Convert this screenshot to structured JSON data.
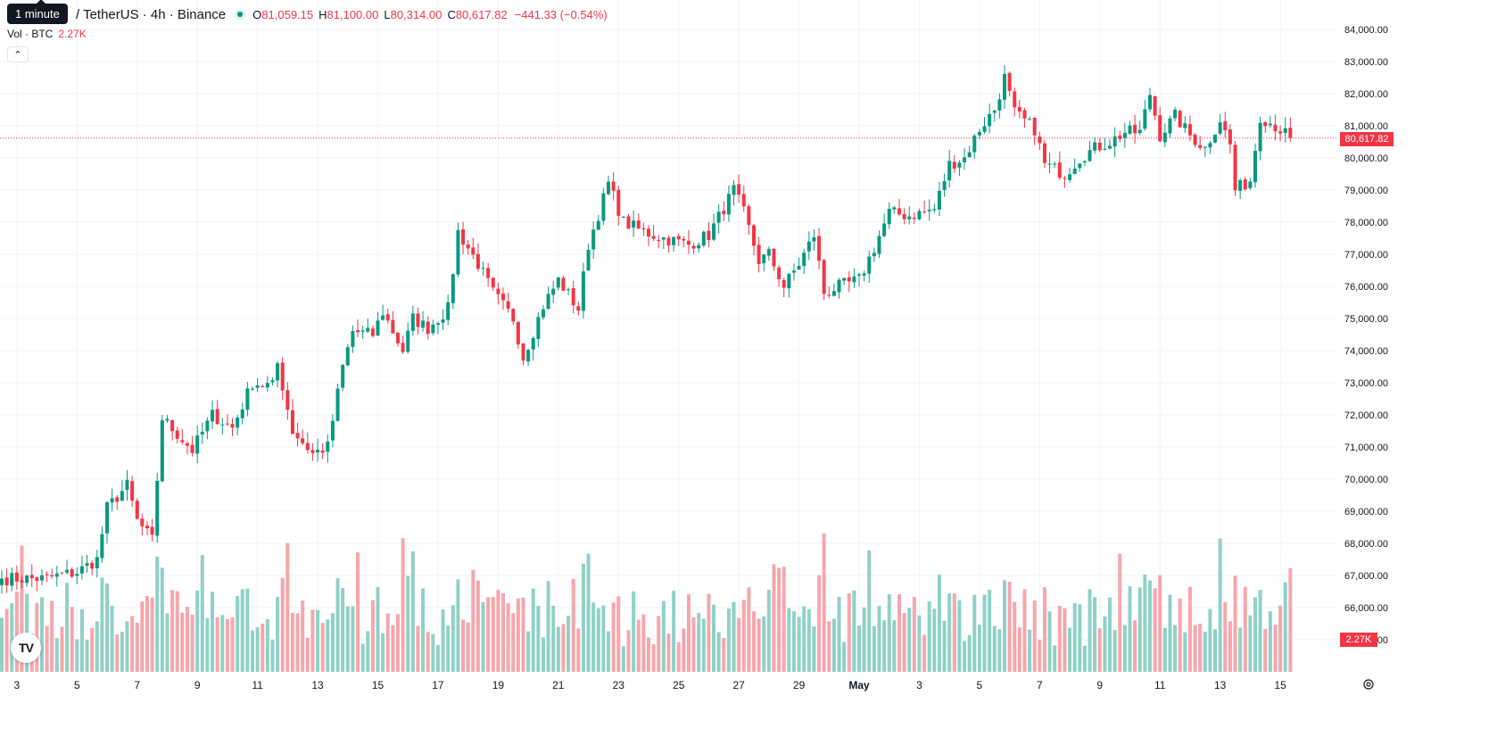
{
  "header": {
    "tooltip": "1 minute",
    "symbol": "/ TetherUS · 4h · Binance",
    "ohlc": [
      {
        "key": "O",
        "value": "81,059.15"
      },
      {
        "key": "H",
        "value": "81,100.00"
      },
      {
        "key": "L",
        "value": "80,314.00"
      },
      {
        "key": "C",
        "value": "80,617.82"
      }
    ],
    "change": "−441.33 (−0.54%)",
    "status_color": "#089981"
  },
  "volume_legend": {
    "label": "Vol · BTC",
    "value": "2.27K"
  },
  "logo_text": "TV",
  "last_price_label": "80,617.82",
  "last_volume_label": "2.27K",
  "colors": {
    "up": "#089981",
    "down": "#f23645",
    "vol_up": "#8fd1c6",
    "vol_down": "#f7a6ab"
  },
  "icons": [
    "chevron-up-icon",
    "tradingview-logo-icon",
    "gear-icon"
  ],
  "chart_data": {
    "type": "candlestick",
    "y_ticks": [
      "84,000.00",
      "83,000.00",
      "82,000.00",
      "81,000.00",
      "80,000.00",
      "79,000.00",
      "78,000.00",
      "77,000.00",
      "76,000.00",
      "75,000.00",
      "74,000.00",
      "73,000.00",
      "72,000.00",
      "71,000.00",
      "70,000.00",
      "69,000.00",
      "68,000.00",
      "67,000.00",
      "66,000.00",
      "65,000.00"
    ],
    "x_ticks": [
      {
        "label": "3",
        "bar": 3
      },
      {
        "label": "5",
        "bar": 15
      },
      {
        "label": "7",
        "bar": 27
      },
      {
        "label": "9",
        "bar": 39
      },
      {
        "label": "11",
        "bar": 51
      },
      {
        "label": "13",
        "bar": 63
      },
      {
        "label": "15",
        "bar": 75
      },
      {
        "label": "17",
        "bar": 87
      },
      {
        "label": "19",
        "bar": 99
      },
      {
        "label": "21",
        "bar": 111
      },
      {
        "label": "23",
        "bar": 123
      },
      {
        "label": "25",
        "bar": 135
      },
      {
        "label": "27",
        "bar": 147
      },
      {
        "label": "29",
        "bar": 159
      },
      {
        "label": "May",
        "bar": 171,
        "bold": true
      },
      {
        "label": "3",
        "bar": 183
      },
      {
        "label": "5",
        "bar": 195
      },
      {
        "label": "7",
        "bar": 207
      },
      {
        "label": "9",
        "bar": 219
      },
      {
        "label": "11",
        "bar": 231
      },
      {
        "label": "13",
        "bar": 243
      },
      {
        "label": "15",
        "bar": 255
      }
    ],
    "y_range": [
      64500,
      84300
    ],
    "last_price": 80617.82,
    "grid": true,
    "close_anchors": [
      [
        0,
        66900
      ],
      [
        8,
        66900
      ],
      [
        15,
        67100
      ],
      [
        19,
        67500
      ],
      [
        21,
        69100
      ],
      [
        25,
        69800
      ],
      [
        27,
        68700
      ],
      [
        30,
        68100
      ],
      [
        32,
        71900
      ],
      [
        38,
        70900
      ],
      [
        42,
        72000
      ],
      [
        46,
        71600
      ],
      [
        50,
        73000
      ],
      [
        54,
        72900
      ],
      [
        55,
        73600
      ],
      [
        58,
        71500
      ],
      [
        62,
        70800
      ],
      [
        65,
        71000
      ],
      [
        68,
        73500
      ],
      [
        70,
        74600
      ],
      [
        74,
        74500
      ],
      [
        76,
        75200
      ],
      [
        80,
        74000
      ],
      [
        82,
        75000
      ],
      [
        85,
        74700
      ],
      [
        89,
        75300
      ],
      [
        91,
        77700
      ],
      [
        95,
        76700
      ],
      [
        98,
        75800
      ],
      [
        102,
        75000
      ],
      [
        104,
        73800
      ],
      [
        108,
        75400
      ],
      [
        111,
        76200
      ],
      [
        115,
        75300
      ],
      [
        117,
        77300
      ],
      [
        121,
        79200
      ],
      [
        124,
        78000
      ],
      [
        128,
        77700
      ],
      [
        132,
        77500
      ],
      [
        137,
        77300
      ],
      [
        141,
        77600
      ],
      [
        146,
        79000
      ],
      [
        148,
        78300
      ],
      [
        151,
        76800
      ],
      [
        153,
        77000
      ],
      [
        156,
        76000
      ],
      [
        159,
        76700
      ],
      [
        162,
        77600
      ],
      [
        164,
        75800
      ],
      [
        167,
        76000
      ],
      [
        171,
        76200
      ],
      [
        174,
        77200
      ],
      [
        177,
        78300
      ],
      [
        181,
        78200
      ],
      [
        186,
        78400
      ],
      [
        189,
        79800
      ],
      [
        192,
        80000
      ],
      [
        195,
        80900
      ],
      [
        198,
        81500
      ],
      [
        200,
        82500
      ],
      [
        202,
        81400
      ],
      [
        206,
        80900
      ],
      [
        208,
        79800
      ],
      [
        212,
        79500
      ],
      [
        215,
        80000
      ],
      [
        218,
        80300
      ],
      [
        221,
        80500
      ],
      [
        224,
        80800
      ],
      [
        227,
        80800
      ],
      [
        229,
        82000
      ],
      [
        231,
        80700
      ],
      [
        234,
        81300
      ],
      [
        237,
        80700
      ],
      [
        240,
        80300
      ],
      [
        243,
        81200
      ],
      [
        245,
        80400
      ],
      [
        246,
        79000
      ],
      [
        249,
        79300
      ],
      [
        251,
        81300
      ],
      [
        254,
        81000
      ],
      [
        257,
        80617.82
      ]
    ],
    "volume_bars": 257,
    "volume_range": [
      0,
      5000
    ]
  }
}
